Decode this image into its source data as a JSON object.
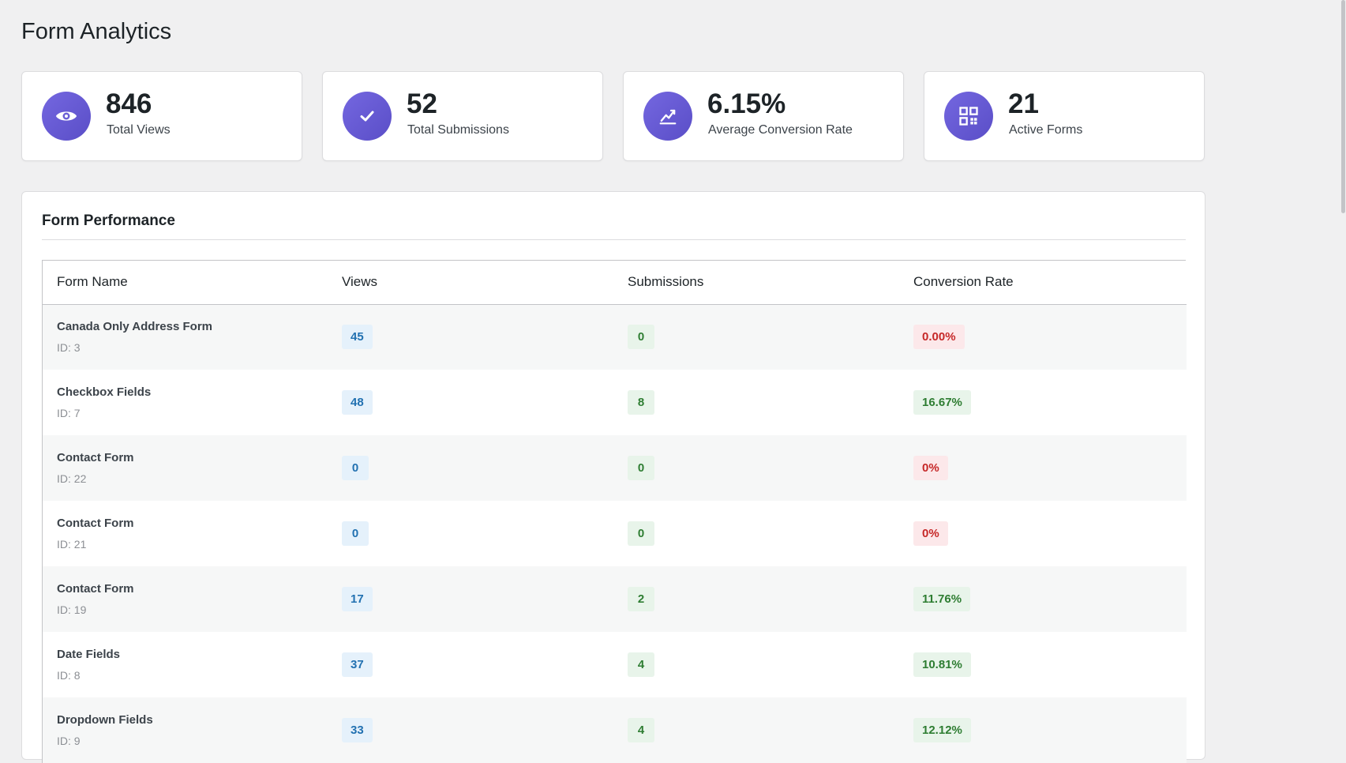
{
  "page": {
    "title": "Form Analytics"
  },
  "stats": [
    {
      "value": "846",
      "label": "Total Views",
      "icon": "eye-icon"
    },
    {
      "value": "52",
      "label": "Total Submissions",
      "icon": "checkmark-icon"
    },
    {
      "value": "6.15%",
      "label": "Average Conversion Rate",
      "icon": "chart-icon"
    },
    {
      "value": "21",
      "label": "Active Forms",
      "icon": "grid-icon"
    }
  ],
  "performance": {
    "title": "Form Performance",
    "columns": [
      "Form Name",
      "Views",
      "Submissions",
      "Conversion Rate"
    ],
    "rows": [
      {
        "name": "Canada Only Address Form",
        "id": "ID: 3",
        "views": "45",
        "submissions": "0",
        "rate": "0.00%",
        "status": "bad"
      },
      {
        "name": "Checkbox Fields",
        "id": "ID: 7",
        "views": "48",
        "submissions": "8",
        "rate": "16.67%",
        "status": "good"
      },
      {
        "name": "Contact Form",
        "id": "ID: 22",
        "views": "0",
        "submissions": "0",
        "rate": "0%",
        "status": "bad"
      },
      {
        "name": "Contact Form",
        "id": "ID: 21",
        "views": "0",
        "submissions": "0",
        "rate": "0%",
        "status": "bad"
      },
      {
        "name": "Contact Form",
        "id": "ID: 19",
        "views": "17",
        "submissions": "2",
        "rate": "11.76%",
        "status": "good"
      },
      {
        "name": "Date Fields",
        "id": "ID: 8",
        "views": "37",
        "submissions": "4",
        "rate": "10.81%",
        "status": "good"
      },
      {
        "name": "Dropdown Fields",
        "id": "ID: 9",
        "views": "33",
        "submissions": "4",
        "rate": "12.12%",
        "status": "good"
      }
    ]
  },
  "colors": {
    "accent_gradient_start": "#7467e0",
    "accent_gradient_end": "#5a4ec7",
    "views_badge": "#2271b1",
    "good_badge": "#2e7d32",
    "bad_badge": "#c62828"
  }
}
